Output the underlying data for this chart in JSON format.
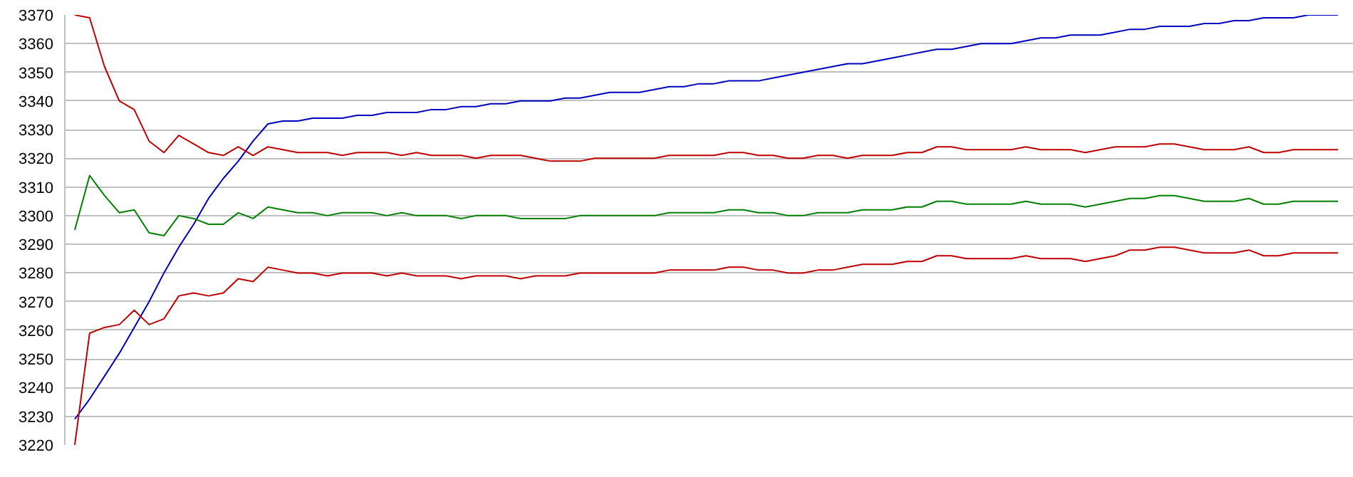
{
  "chart_data": {
    "type": "line",
    "categories": [
      null,
      null,
      null,
      null,
      null,
      null,
      null,
      null,
      null,
      null,
      null,
      null,
      null,
      null,
      null,
      null,
      null,
      null,
      null,
      null,
      null,
      null,
      null,
      null,
      null,
      null,
      null,
      null,
      null,
      null,
      null,
      null,
      null,
      null,
      null,
      null,
      null,
      null,
      null,
      null,
      null,
      null,
      null,
      null,
      null,
      null,
      null,
      null,
      null,
      null,
      null,
      null,
      null,
      null,
      null,
      null,
      null,
      null,
      null,
      null,
      null,
      null,
      null,
      null,
      null,
      null,
      null,
      null,
      null,
      null,
      null,
      null,
      null,
      null,
      null,
      null,
      null,
      null,
      null,
      null,
      null,
      null,
      null,
      null,
      null,
      null
    ],
    "ylim": [
      3220,
      3370
    ],
    "yticks": [
      3220,
      3230,
      3240,
      3250,
      3260,
      3270,
      3280,
      3290,
      3300,
      3310,
      3320,
      3330,
      3340,
      3350,
      3360,
      3370
    ],
    "grid": "y",
    "tick_labels": "y",
    "line_style": "solid",
    "marker": "none",
    "series": [
      {
        "color": "#0000c0",
        "values": [
          3229,
          3236,
          3244,
          3252,
          3261,
          3270,
          3280,
          3289,
          3297,
          3306,
          3313,
          3319,
          3326,
          3332,
          3333,
          3333,
          3334,
          3334,
          3334,
          3335,
          3335,
          3336,
          3336,
          3336,
          3337,
          3337,
          3338,
          3338,
          3339,
          3339,
          3340,
          3340,
          3340,
          3341,
          3341,
          3342,
          3343,
          3343,
          3343,
          3344,
          3345,
          3345,
          3346,
          3346,
          3347,
          3347,
          3347,
          3348,
          3349,
          3350,
          3351,
          3352,
          3353,
          3353,
          3354,
          3355,
          3356,
          3357,
          3358,
          3358,
          3359,
          3360,
          3360,
          3360,
          3361,
          3362,
          3362,
          3363,
          3363,
          3363,
          3364,
          3365,
          3365,
          3366,
          3366,
          3366,
          3367,
          3367,
          3368,
          3368,
          3369,
          3369,
          3369,
          3370,
          3370,
          3370
        ]
      },
      {
        "color": "#c00000",
        "values": [
          3370,
          3369,
          3352,
          3340,
          3337,
          3326,
          3322,
          3328,
          3325,
          3322,
          3321,
          3324,
          3321,
          3324,
          3323,
          3322,
          3322,
          3322,
          3321,
          3322,
          3322,
          3322,
          3321,
          3322,
          3321,
          3321,
          3321,
          3320,
          3321,
          3321,
          3321,
          3320,
          3319,
          3319,
          3319,
          3320,
          3320,
          3320,
          3320,
          3320,
          3321,
          3321,
          3321,
          3321,
          3322,
          3322,
          3321,
          3321,
          3320,
          3320,
          3321,
          3321,
          3320,
          3321,
          3321,
          3321,
          3322,
          3322,
          3324,
          3324,
          3323,
          3323,
          3323,
          3323,
          3324,
          3323,
          3323,
          3323,
          3322,
          3323,
          3324,
          3324,
          3324,
          3325,
          3325,
          3324,
          3323,
          3323,
          3323,
          3324,
          3322,
          3322,
          3323,
          3323,
          3323,
          3323
        ]
      },
      {
        "color": "#008000",
        "values": [
          3295,
          3314,
          3307,
          3301,
          3302,
          3294,
          3293,
          3300,
          3299,
          3297,
          3297,
          3301,
          3299,
          3303,
          3302,
          3301,
          3301,
          3300,
          3301,
          3301,
          3301,
          3300,
          3301,
          3300,
          3300,
          3300,
          3299,
          3300,
          3300,
          3300,
          3299,
          3299,
          3299,
          3299,
          3300,
          3300,
          3300,
          3300,
          3300,
          3300,
          3301,
          3301,
          3301,
          3301,
          3302,
          3302,
          3301,
          3301,
          3300,
          3300,
          3301,
          3301,
          3301,
          3302,
          3302,
          3302,
          3303,
          3303,
          3305,
          3305,
          3304,
          3304,
          3304,
          3304,
          3305,
          3304,
          3304,
          3304,
          3303,
          3304,
          3305,
          3306,
          3306,
          3307,
          3307,
          3306,
          3305,
          3305,
          3305,
          3306,
          3304,
          3304,
          3305,
          3305,
          3305,
          3305
        ]
      },
      {
        "color": "#c00000",
        "values": [
          3220,
          3259,
          3261,
          3262,
          3267,
          3262,
          3264,
          3272,
          3273,
          3272,
          3273,
          3278,
          3277,
          3282,
          3281,
          3280,
          3280,
          3279,
          3280,
          3280,
          3280,
          3279,
          3280,
          3279,
          3279,
          3279,
          3278,
          3279,
          3279,
          3279,
          3278,
          3279,
          3279,
          3279,
          3280,
          3280,
          3280,
          3280,
          3280,
          3280,
          3281,
          3281,
          3281,
          3281,
          3282,
          3282,
          3281,
          3281,
          3280,
          3280,
          3281,
          3281,
          3282,
          3283,
          3283,
          3283,
          3284,
          3284,
          3286,
          3286,
          3285,
          3285,
          3285,
          3285,
          3286,
          3285,
          3285,
          3285,
          3284,
          3285,
          3286,
          3288,
          3288,
          3289,
          3289,
          3288,
          3287,
          3287,
          3287,
          3288,
          3286,
          3286,
          3287,
          3287,
          3287,
          3287
        ]
      }
    ]
  }
}
